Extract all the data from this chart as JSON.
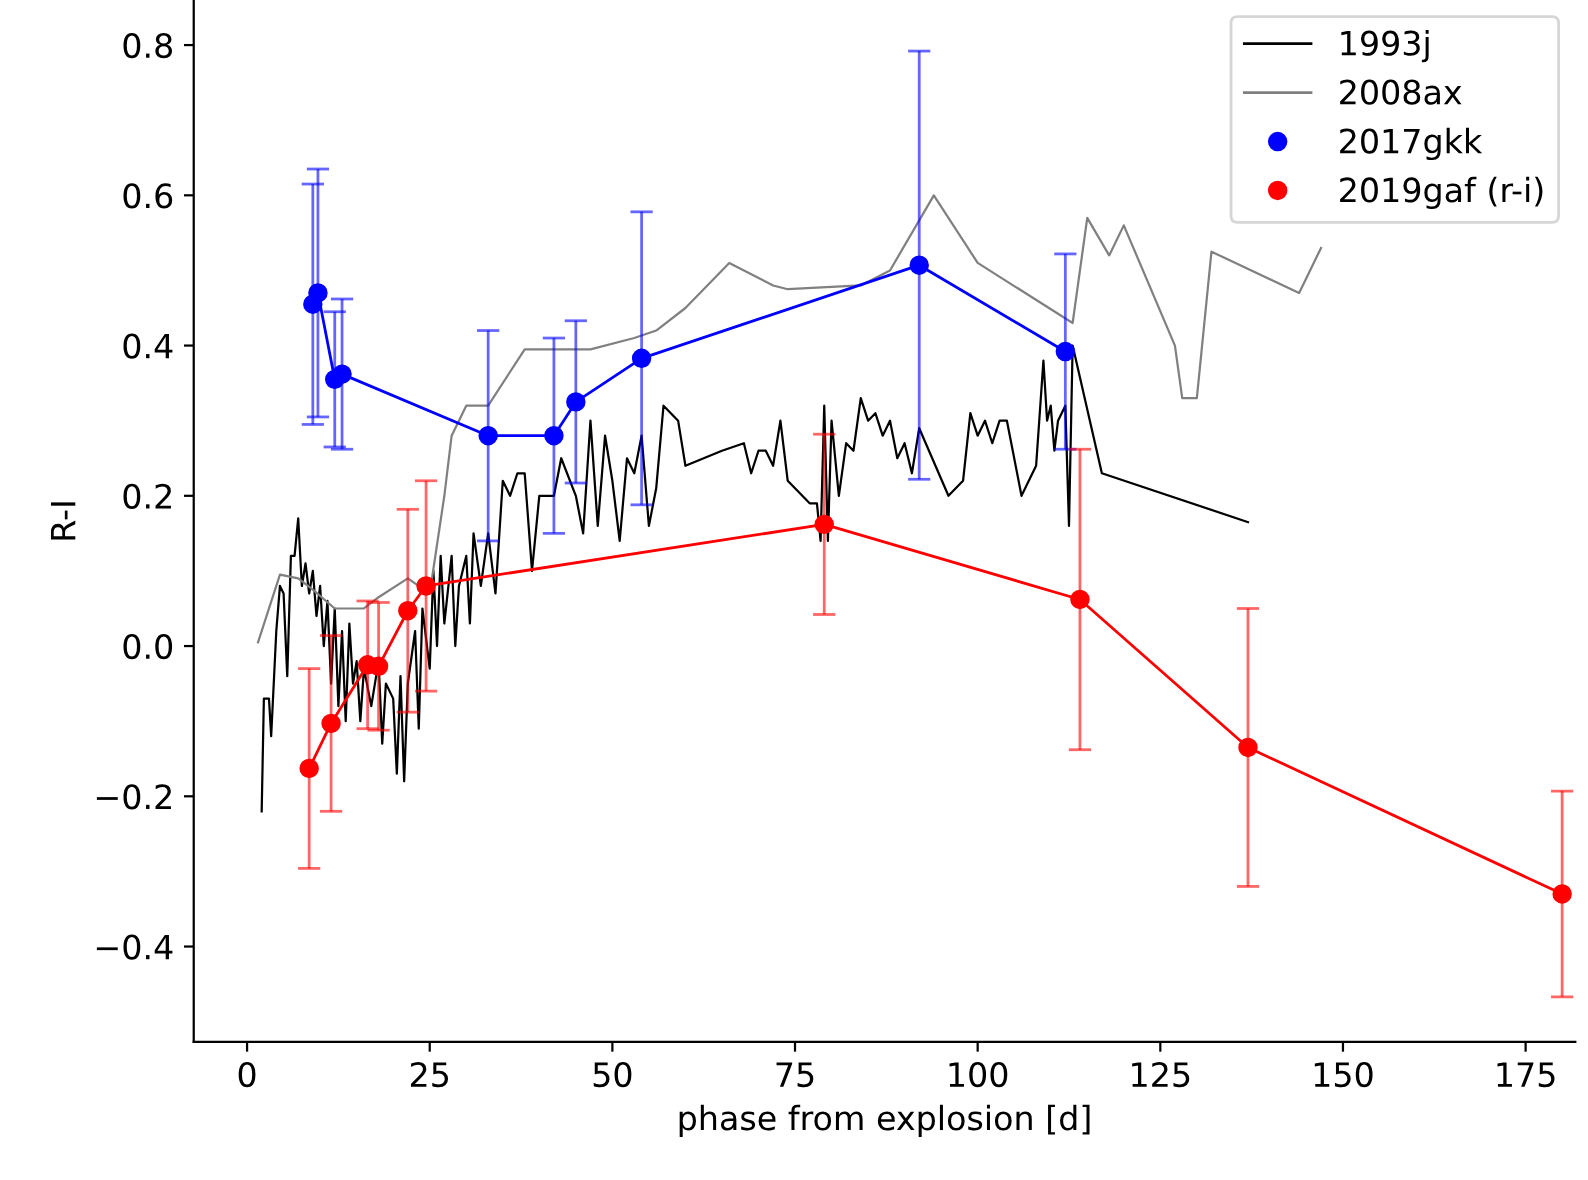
{
  "chart_data": {
    "type": "line",
    "xlabel": "phase from explosion [d]",
    "ylabel": "R-I",
    "xlim": [
      -7.3,
      181.8
    ],
    "ylim": [
      -0.527,
      0.86
    ],
    "xticks": [
      0,
      25,
      50,
      75,
      100,
      125,
      150,
      175
    ],
    "yticks": [
      {
        "value": -0.4,
        "label": "−0.4"
      },
      {
        "value": -0.2,
        "label": "−0.2"
      },
      {
        "value": 0.0,
        "label": "0.0"
      },
      {
        "value": 0.2,
        "label": "0.2"
      },
      {
        "value": 0.4,
        "label": "0.4"
      },
      {
        "value": 0.6,
        "label": "0.6"
      },
      {
        "value": 0.8,
        "label": "0.8"
      }
    ],
    "legend": "top right",
    "grid": false,
    "series": [
      {
        "name": "1993j",
        "color": "#000000",
        "marker": "none",
        "x": [
          2,
          2.3,
          3,
          3.3,
          4,
          4.5,
          5,
          5.5,
          6,
          6.5,
          7,
          7.5,
          8,
          8.5,
          9,
          9.5,
          10,
          10.5,
          11,
          11.5,
          12,
          12.5,
          13,
          13.5,
          14,
          14.5,
          15,
          15.5,
          16,
          17,
          18,
          18.5,
          19,
          20,
          20.5,
          21,
          21.5,
          22,
          23,
          23.5,
          24,
          25,
          25.5,
          26,
          26.5,
          27,
          28,
          28.5,
          29,
          30,
          30.5,
          31,
          32,
          33,
          34,
          35,
          36,
          37,
          38,
          39,
          40,
          42,
          43,
          45,
          46,
          47,
          48,
          49,
          50,
          51,
          52,
          53,
          54,
          55,
          56,
          57,
          59,
          60,
          65,
          68,
          69,
          70,
          71,
          72,
          73,
          74,
          75,
          77,
          78,
          78.5,
          79,
          79.5,
          80,
          81,
          82,
          83,
          84,
          85,
          86,
          87,
          88,
          89,
          90,
          91,
          92,
          96,
          98,
          99,
          100,
          101,
          102,
          103,
          104,
          106,
          108,
          109,
          109.5,
          110,
          110.5,
          111,
          112,
          112.5,
          113,
          117,
          137
        ],
        "values": [
          -0.22,
          -0.07,
          -0.07,
          -0.12,
          0.02,
          0.08,
          0.07,
          -0.04,
          0.12,
          0.12,
          0.17,
          0.08,
          0.11,
          0.07,
          0.1,
          0.04,
          0.08,
          0.0,
          0.06,
          -0.05,
          0.05,
          -0.08,
          0.02,
          -0.1,
          0.03,
          -0.05,
          -0.02,
          -0.1,
          -0.03,
          -0.08,
          -0.02,
          -0.13,
          -0.05,
          -0.07,
          -0.17,
          -0.04,
          -0.18,
          -0.05,
          0.02,
          -0.11,
          0.05,
          -0.03,
          0.1,
          0.0,
          0.12,
          0.03,
          0.12,
          0.0,
          0.08,
          0.12,
          0.03,
          0.15,
          0.08,
          0.15,
          0.07,
          0.22,
          0.2,
          0.23,
          0.23,
          0.1,
          0.2,
          0.2,
          0.25,
          0.2,
          0.15,
          0.3,
          0.16,
          0.28,
          0.22,
          0.14,
          0.25,
          0.23,
          0.28,
          0.16,
          0.21,
          0.32,
          0.3,
          0.24,
          0.26,
          0.27,
          0.23,
          0.26,
          0.26,
          0.24,
          0.3,
          0.22,
          0.21,
          0.19,
          0.19,
          0.14,
          0.32,
          0.14,
          0.3,
          0.2,
          0.27,
          0.26,
          0.33,
          0.3,
          0.31,
          0.28,
          0.3,
          0.25,
          0.27,
          0.23,
          0.29,
          0.2,
          0.22,
          0.31,
          0.28,
          0.3,
          0.27,
          0.3,
          0.3,
          0.2,
          0.24,
          0.38,
          0.3,
          0.32,
          0.26,
          0.3,
          0.32,
          0.16,
          0.4,
          0.23,
          0.165
        ]
      },
      {
        "name": "2008ax",
        "color": "#808080",
        "marker": "none",
        "x": [
          1.5,
          4.5,
          7,
          9,
          12,
          16,
          18,
          22,
          25,
          27,
          28,
          30,
          33,
          38,
          47,
          53,
          56,
          60,
          66,
          72,
          74,
          84,
          88,
          94,
          100,
          113,
          115,
          118,
          120,
          127,
          128,
          130,
          132,
          144,
          145,
          147
        ],
        "values": [
          0.005,
          0.095,
          0.09,
          0.075,
          0.05,
          0.05,
          0.065,
          0.09,
          0.07,
          0.2,
          0.28,
          0.32,
          0.32,
          0.395,
          0.395,
          0.41,
          0.42,
          0.45,
          0.51,
          0.48,
          0.475,
          0.48,
          0.5,
          0.6,
          0.51,
          0.43,
          0.57,
          0.52,
          0.56,
          0.4,
          0.33,
          0.33,
          0.525,
          0.47,
          0.49,
          0.53
        ]
      },
      {
        "name": "2017gkk",
        "color": "#0000ff",
        "marker": "circle",
        "x": [
          9,
          9.7,
          12,
          13,
          33,
          42,
          45,
          54,
          92,
          112
        ],
        "values": [
          0.455,
          0.47,
          0.355,
          0.362,
          0.28,
          0.28,
          0.325,
          0.383,
          0.507,
          0.392
        ],
        "errors": [
          0.16,
          0.165,
          0.09,
          0.1,
          0.14,
          0.13,
          0.108,
          0.195,
          0.285,
          0.13
        ]
      },
      {
        "name": "2019gaf (r-i)",
        "color": "#ff0000",
        "marker": "circle",
        "x": [
          8.5,
          11.5,
          16.5,
          18,
          22,
          24.5,
          79,
          114,
          137,
          180
        ],
        "values": [
          -0.163,
          -0.103,
          -0.025,
          -0.027,
          0.047,
          0.08,
          0.162,
          0.062,
          -0.135,
          -0.33
        ],
        "errors": [
          0.133,
          0.117,
          0.085,
          0.085,
          0.135,
          0.14,
          0.12,
          0.2,
          0.185,
          0.137
        ]
      }
    ]
  }
}
